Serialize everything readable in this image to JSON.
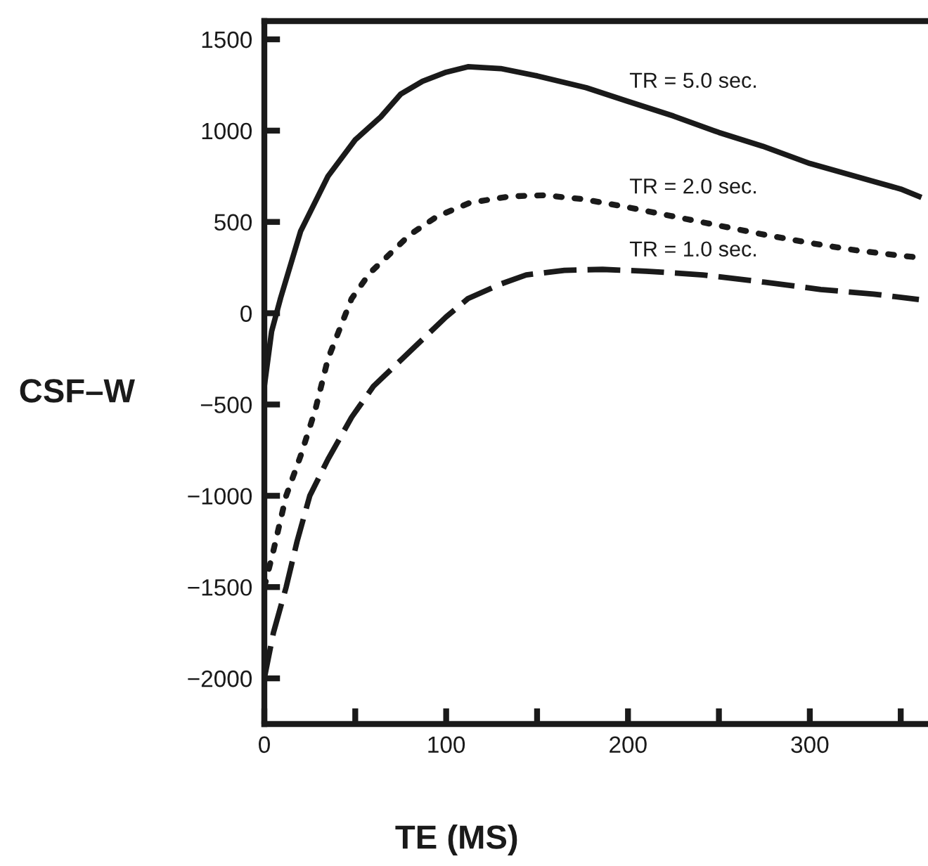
{
  "chart_data": {
    "type": "line",
    "xlabel": "TE (MS)",
    "ylabel": "CSF–W",
    "xlim": [
      0,
      365
    ],
    "ylim": [
      -2250,
      1600
    ],
    "xticks": [
      0,
      {
        "value": 50,
        "label": null
      },
      100,
      {
        "value": 150,
        "label": null
      },
      200,
      {
        "value": 250,
        "label": null
      },
      300,
      {
        "value": 350,
        "label": null
      }
    ],
    "yticks": [
      -2000,
      -1500,
      -1000,
      -500,
      0,
      500,
      1000,
      1500
    ],
    "grid": false,
    "marker": "none",
    "series": [
      {
        "name": "TR = 5.0 sec.",
        "color": "#1a1a1a",
        "line_style": "solid",
        "x": [
          0,
          4,
          9,
          20,
          35,
          50,
          64,
          75,
          87,
          100,
          112,
          130,
          150,
          177,
          200,
          225,
          250,
          274,
          300,
          325,
          350,
          360
        ],
        "values": [
          -400,
          -100,
          85,
          450,
          750,
          950,
          1075,
          1200,
          1270,
          1320,
          1350,
          1340,
          1300,
          1235,
          1160,
          1080,
          990,
          915,
          820,
          750,
          680,
          640
        ]
      },
      {
        "name": "TR = 2.0 sec.",
        "color": "#1a1a1a",
        "line_style": "dotted",
        "x": [
          0,
          5,
          12,
          20,
          28,
          35,
          48,
          58,
          67,
          80,
          95,
          113,
          135,
          154,
          175,
          200,
          225,
          250,
          275,
          300,
          325,
          350,
          360
        ],
        "values": [
          -1500,
          -1300,
          -1000,
          -780,
          -530,
          -250,
          80,
          220,
          305,
          430,
          530,
          605,
          640,
          646,
          625,
          580,
          530,
          480,
          430,
          385,
          345,
          315,
          305
        ]
      },
      {
        "name": "TR = 1.0 sec.",
        "color": "#1a1a1a",
        "line_style": "dashed",
        "x": [
          0,
          5,
          12,
          18,
          25,
          35,
          48,
          60,
          80,
          100,
          112,
          130,
          144,
          165,
          186,
          210,
          241,
          275,
          306,
          335,
          360
        ],
        "values": [
          -2000,
          -1750,
          -1500,
          -1250,
          -1000,
          -800,
          -570,
          -400,
          -210,
          -20,
          80,
          160,
          210,
          235,
          240,
          230,
          210,
          170,
          130,
          105,
          75
        ]
      }
    ]
  }
}
